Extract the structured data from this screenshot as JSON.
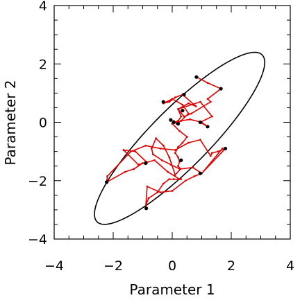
{
  "chart_data": {
    "type": "scatter",
    "xlabel": "Parameter 1",
    "ylabel": "Parameter 2",
    "xlim": [
      -4,
      4
    ],
    "ylim": [
      -4,
      4
    ],
    "xticks": [
      -4,
      -2,
      0,
      2,
      4
    ],
    "yticks": [
      -4,
      -2,
      0,
      2,
      4
    ],
    "xtick_labels": [
      "−4",
      "−2",
      "0",
      "2",
      "4"
    ],
    "ytick_labels": [
      "−4",
      "−2",
      "0",
      "2",
      "4"
    ],
    "grid": false,
    "ellipse": {
      "center": [
        0.25,
        -0.55
      ],
      "semi_major": 4.0,
      "semi_minor": 1.0,
      "angle_deg": 45.7
    },
    "path": {
      "color": "#e00000",
      "x": [
        0.82,
        1.2,
        1.65,
        1.2,
        1.3,
        0.65,
        0.4,
        0.2,
        0.55,
        0.8,
        0.35,
        0.1,
        -0.1,
        -0.3,
        0.0,
        0.35,
        0.55,
        0.3,
        0.15,
        0.05,
        0.1,
        0.2,
        0.3,
        0.2,
        0.95,
        1.35,
        0.95,
        1.2,
        1.0,
        0.6,
        0.3,
        0.0,
        0.25,
        0.5,
        0.35,
        0.2,
        0.1,
        0.2,
        0.25,
        0.2,
        0.28,
        0.1,
        -0.1,
        -0.3,
        -0.55,
        -0.7,
        -0.65,
        -0.35,
        -0.05,
        0.25,
        0.7,
        1.0,
        1.8,
        1.55,
        1.35,
        1.3,
        0.95,
        0.55,
        0.1,
        -0.4,
        -0.9,
        -1.4,
        -2.2,
        -2.22,
        -1.6,
        -1.3,
        -1.0,
        -0.85,
        -1.25,
        -1.65,
        -1.15,
        -0.6,
        -0.15,
        0.25,
        0.3,
        0.05,
        -0.1,
        -0.3,
        -0.5,
        -0.8,
        -0.88,
        -0.9,
        -0.85,
        -0.4,
        0.0,
        0.45,
        0.75,
        1.0,
        1.7
      ],
      "y": [
        1.55,
        1.35,
        1.15,
        0.8,
        0.7,
        0.3,
        0.2,
        0.45,
        0.65,
        0.55,
        0.95,
        0.85,
        0.7,
        0.65,
        0.8,
        0.6,
        0.3,
        0.05,
        -0.05,
        0.05,
        0.0,
        0.05,
        0.2,
        0.45,
        0.7,
        0.2,
        0.0,
        -0.15,
        0.0,
        0.1,
        0.05,
        -0.05,
        -0.3,
        -0.5,
        -0.7,
        -0.85,
        -1.05,
        -1.2,
        -1.35,
        -1.5,
        -1.6,
        -1.8,
        -1.2,
        -0.8,
        -0.55,
        -0.9,
        -1.1,
        -1.3,
        -1.45,
        -1.6,
        -1.55,
        -1.75,
        -0.9,
        -1.0,
        -1.05,
        -1.15,
        -0.6,
        -0.7,
        -0.95,
        -0.9,
        -0.8,
        -1.0,
        -1.85,
        -2.05,
        -1.7,
        -1.6,
        -1.4,
        -1.38,
        -1.0,
        -0.95,
        -1.45,
        -1.3,
        -1.7,
        -1.95,
        -1.95,
        -1.95,
        -1.95,
        -2.1,
        -2.4,
        -2.6,
        -2.8,
        -2.95,
        -2.2,
        -2.4,
        -2.35,
        -2.0,
        -1.85,
        -1.75,
        -0.9
      ],
      "marked_points": [
        [
          0.82,
          1.55
        ],
        [
          1.65,
          1.15
        ],
        [
          0.4,
          0.95
        ],
        [
          -0.3,
          0.7
        ],
        [
          0.35,
          0.4
        ],
        [
          -0.05,
          0.08
        ],
        [
          0.05,
          0.0
        ],
        [
          0.2,
          -0.05
        ],
        [
          0.95,
          0.0
        ],
        [
          1.2,
          -0.15
        ],
        [
          -0.9,
          -1.4
        ],
        [
          -2.22,
          -2.05
        ],
        [
          0.3,
          -1.3
        ],
        [
          1.8,
          -0.9
        ],
        [
          0.95,
          -1.75
        ],
        [
          -0.88,
          -2.95
        ]
      ]
    }
  }
}
